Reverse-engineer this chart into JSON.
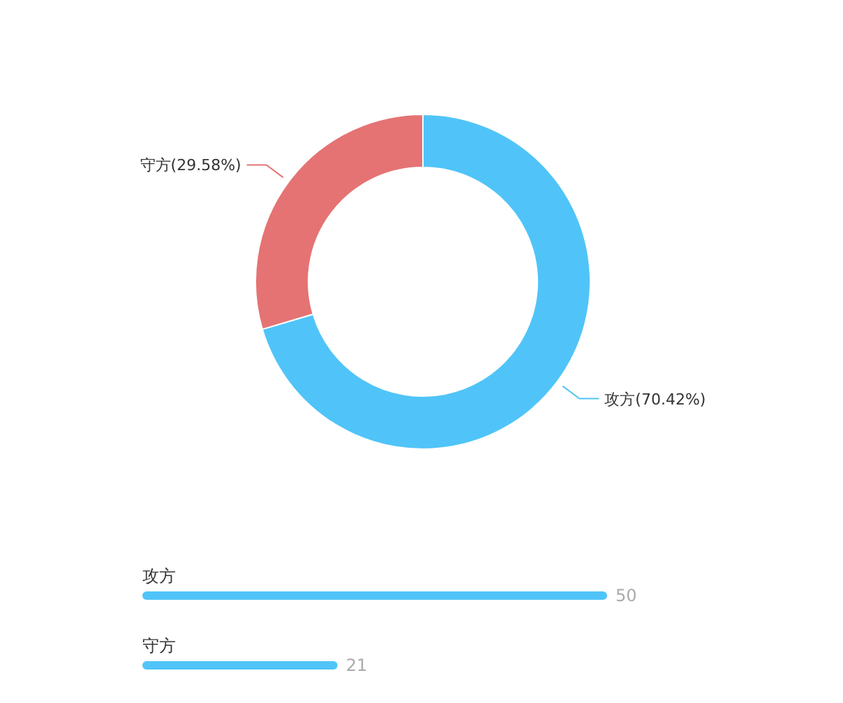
{
  "chart_data": [
    {
      "type": "donut",
      "categories": [
        "攻方",
        "守方"
      ],
      "values": [
        70.42,
        29.58
      ],
      "value_labels": [
        "(70.42%)",
        "(29.58%)"
      ],
      "colors": [
        "#50c4f8",
        "#e57373"
      ]
    },
    {
      "type": "bar",
      "orientation": "horizontal",
      "categories": [
        "攻方",
        "守方"
      ],
      "values": [
        50,
        21
      ],
      "color": "#50c4f8",
      "data_labels": true
    }
  ]
}
